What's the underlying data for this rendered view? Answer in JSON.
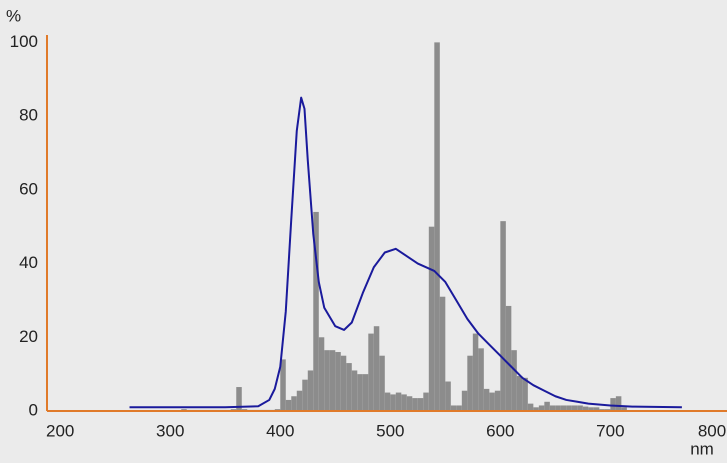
{
  "chart_data": {
    "type": "histogram",
    "y_label": "%",
    "x_label": "nm",
    "xlim": [
      188,
      806
    ],
    "ylim": [
      0,
      102
    ],
    "xticks": [
      200,
      300,
      400,
      500,
      600,
      700,
      800
    ],
    "yticks": [
      0,
      20,
      40,
      60,
      80,
      100
    ],
    "grid": false,
    "axis_color": "#e07a2a",
    "color": "#8c8c8c",
    "bins": [
      310,
      315,
      320,
      325,
      330,
      335,
      340,
      345,
      350,
      355,
      360,
      365,
      370,
      375,
      380,
      385,
      390,
      395,
      400,
      405,
      410,
      415,
      420,
      425,
      430,
      435,
      440,
      445,
      450,
      455,
      460,
      465,
      470,
      475,
      480,
      485,
      490,
      495,
      500,
      505,
      510,
      515,
      520,
      525,
      530,
      535,
      540,
      545,
      550,
      555,
      560,
      565,
      570,
      575,
      580,
      585,
      590,
      595,
      600,
      605,
      610,
      615,
      620,
      625,
      630,
      635,
      640,
      645,
      650,
      655,
      660,
      665,
      670,
      675,
      680,
      685,
      690,
      695,
      700,
      705,
      710,
      715
    ],
    "values": [
      0.5,
      0.3,
      0.3,
      0.3,
      0.3,
      0.3,
      0.3,
      0.3,
      0.3,
      0.5,
      6.5,
      0.5,
      0.3,
      0.3,
      0.3,
      0.3,
      0.3,
      0.5,
      14,
      3,
      4,
      5.5,
      8.5,
      11,
      54,
      20,
      16.5,
      16.5,
      16,
      15,
      13,
      11,
      10,
      10,
      21,
      23,
      15,
      5,
      4.5,
      5,
      4.5,
      4,
      3.5,
      3.5,
      5,
      50,
      100,
      31,
      8,
      1.5,
      1.5,
      5.5,
      15,
      21,
      17,
      6,
      5,
      5.5,
      51.5,
      28.5,
      16.5,
      9.5,
      9,
      2,
      1,
      1.5,
      2.5,
      1.5,
      1.5,
      1.5,
      1.5,
      1.5,
      1.5,
      1.2,
      1,
      1,
      0.5,
      0.5,
      3.5,
      4,
      1
    ],
    "overlay": {
      "type": "line",
      "color": "#1a1a9c",
      "x": [
        263,
        300,
        350,
        380,
        390,
        395,
        400,
        405,
        410,
        415,
        419,
        422,
        425,
        430,
        435,
        440,
        450,
        458,
        465,
        475,
        485,
        495,
        505,
        515,
        525,
        540,
        550,
        560,
        570,
        580,
        590,
        600,
        610,
        620,
        630,
        640,
        650,
        660,
        670,
        680,
        700,
        720,
        765
      ],
      "values": [
        1,
        1,
        1,
        1.3,
        3,
        6,
        12,
        27,
        52,
        76,
        85,
        82,
        68,
        48,
        35,
        28,
        23,
        22,
        24,
        32,
        39,
        43,
        44,
        42,
        40,
        38,
        35,
        30,
        25,
        21,
        18,
        15,
        12,
        9,
        7,
        5.5,
        4,
        3,
        2.5,
        2,
        1.5,
        1.2,
        1
      ]
    }
  }
}
